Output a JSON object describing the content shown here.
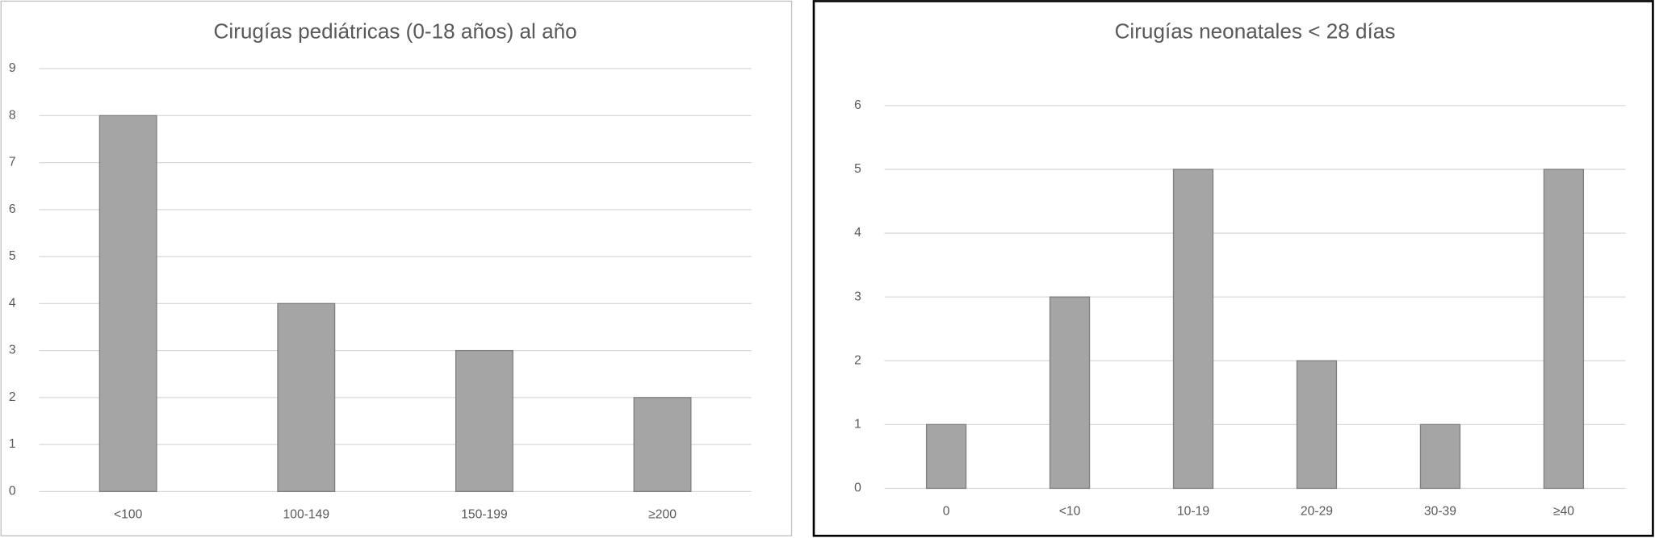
{
  "chart_data": [
    {
      "type": "bar",
      "title": "Cirugías pediátricas (0-18 años) al año",
      "categories": [
        "<100",
        "100-149",
        "150-199",
        "≥200"
      ],
      "values": [
        8,
        4,
        3,
        2
      ],
      "color": "#a5a5a5",
      "ylim": [
        0,
        9
      ],
      "yticks": [
        0,
        1,
        2,
        3,
        4,
        5,
        6,
        7,
        8,
        9
      ],
      "grid": true
    },
    {
      "type": "bar",
      "title": "Cirugías neonatales < 28 días",
      "categories": [
        "0",
        "<10",
        "10-19",
        "20-29",
        "30-39",
        "≥40"
      ],
      "values": [
        1,
        3,
        5,
        2,
        1,
        5
      ],
      "color": "#a5a5a5",
      "ylim": [
        0,
        6
      ],
      "yticks": [
        0,
        1,
        2,
        3,
        4,
        5,
        6
      ],
      "grid": true
    }
  ]
}
